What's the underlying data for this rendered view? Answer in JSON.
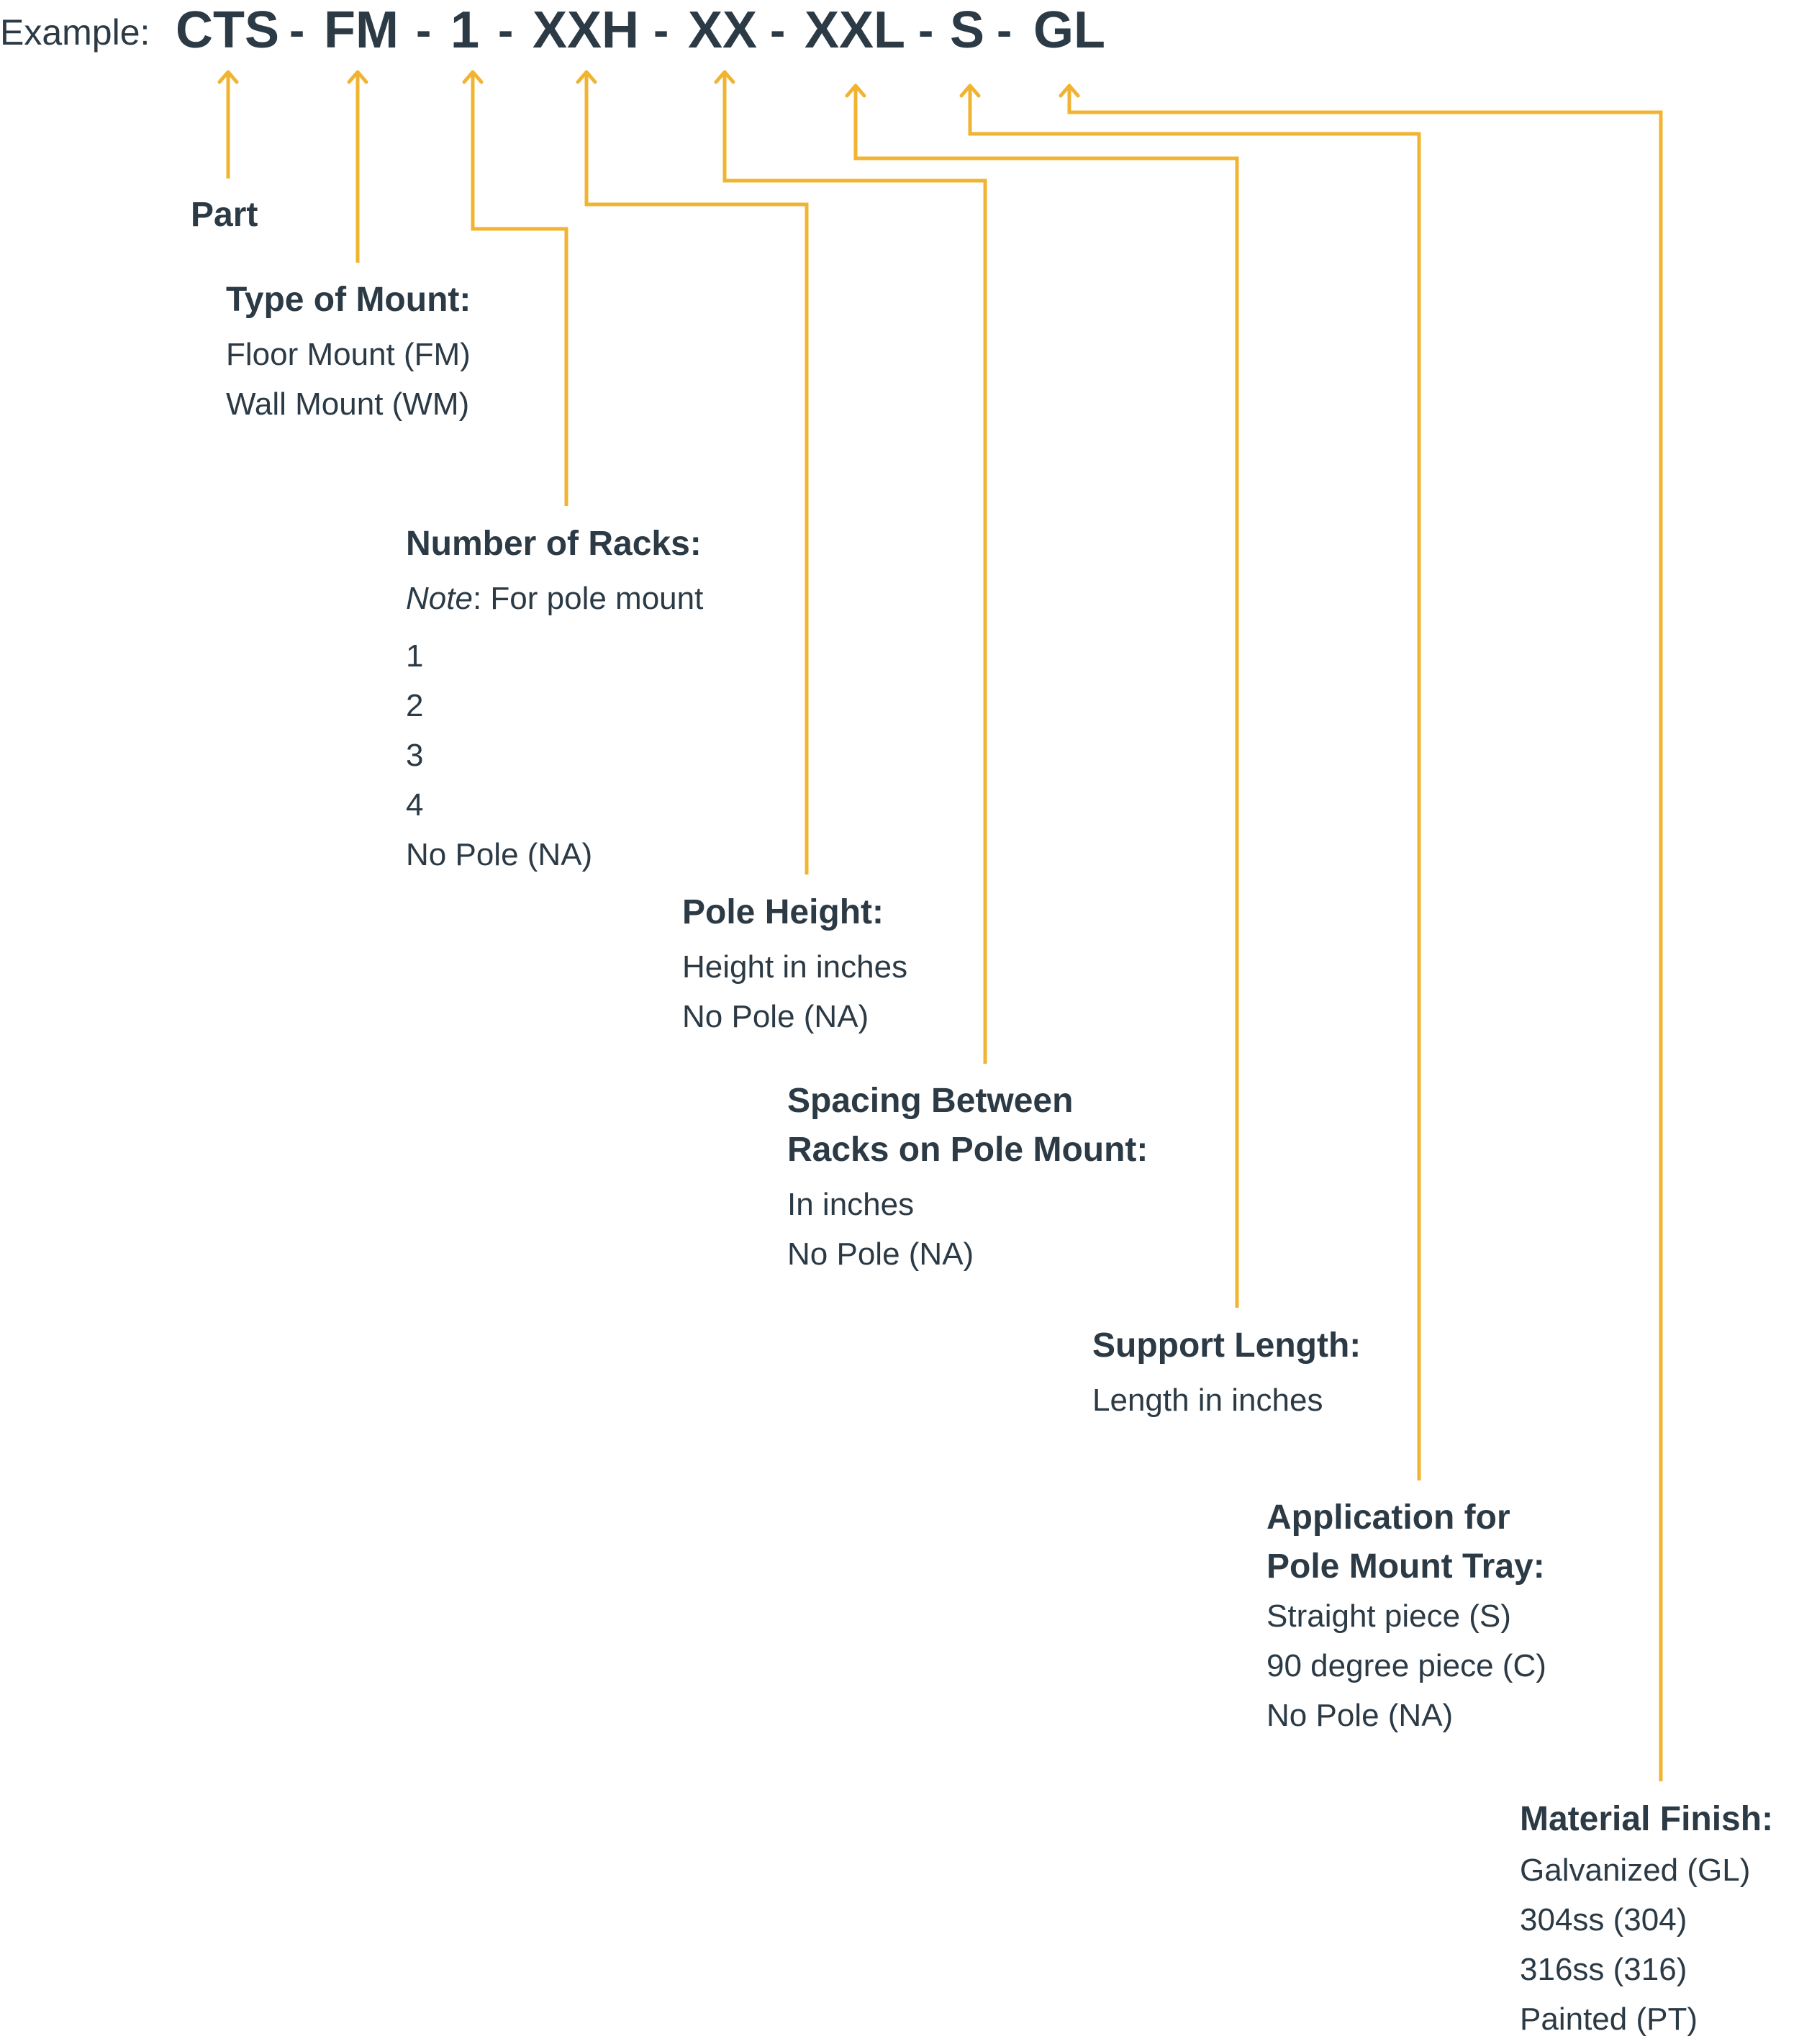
{
  "example_prefix": "Example:",
  "code_segments": [
    "CTS",
    "FM",
    "1",
    "XXH",
    "XX",
    "XXL",
    "S",
    "GL"
  ],
  "separator": "-",
  "line_color": "#f0b432",
  "text_color": "#2b3a45",
  "fields": [
    {
      "id": "part",
      "heading": "Part",
      "items": []
    },
    {
      "id": "type-of-mount",
      "heading": "Type of Mount:",
      "items": [
        "Floor Mount (FM)",
        "Wall Mount (WM)"
      ]
    },
    {
      "id": "number-of-racks",
      "heading": "Number of Racks:",
      "note_label": "Note",
      "note_text": ": For pole mount",
      "items": [
        "1",
        "2",
        "3",
        "4",
        "No Pole (NA)"
      ]
    },
    {
      "id": "pole-height",
      "heading": "Pole Height:",
      "items": [
        "Height in inches",
        "No Pole (NA)"
      ]
    },
    {
      "id": "spacing",
      "heading_lines": [
        "Spacing Between",
        "Racks on Pole Mount:"
      ],
      "items": [
        "In inches",
        "No Pole (NA)"
      ]
    },
    {
      "id": "support-length",
      "heading": "Support Length:",
      "items": [
        "Length in inches"
      ]
    },
    {
      "id": "application",
      "heading_lines": [
        "Application for",
        "Pole Mount Tray:"
      ],
      "items": [
        "Straight piece (S)",
        "90 degree piece (C)",
        "No Pole (NA)"
      ]
    },
    {
      "id": "material-finish",
      "heading": "Material Finish:",
      "items": [
        "Galvanized (GL)",
        "304ss (304)",
        "316ss (316)",
        "Painted (PT)"
      ]
    }
  ]
}
